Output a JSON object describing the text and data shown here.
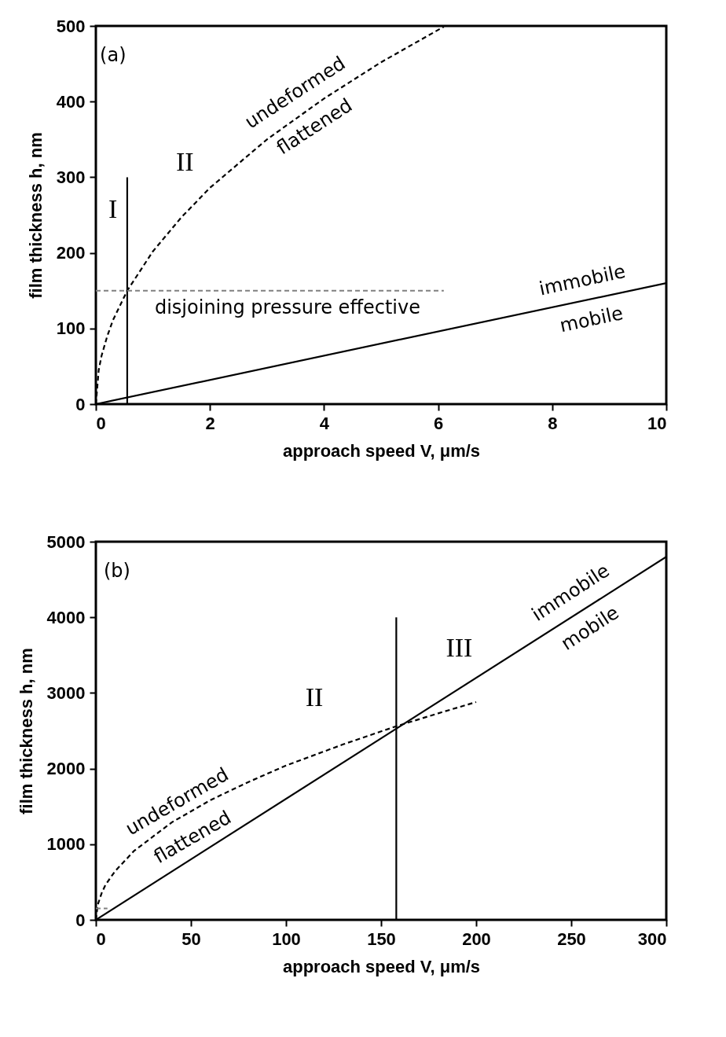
{
  "chart_data": [
    {
      "type": "line",
      "xlabel": "approach speed  V, μm/s",
      "ylabel": "film thickness  h, nm",
      "xlim": [
        0,
        10
      ],
      "ylim": [
        0,
        500
      ],
      "xticks": [
        0,
        2,
        4,
        6,
        8,
        10
      ],
      "yticks": [
        0,
        100,
        200,
        300,
        400,
        500
      ],
      "grid": false,
      "series": [
        {
          "color": "#000000",
          "line_style": "dashed",
          "x": [
            0,
            0.05,
            0.1,
            0.2,
            0.3,
            0.55,
            1,
            1.5,
            2,
            3,
            4,
            5,
            6.1
          ],
          "values": [
            0,
            45,
            64,
            90,
            111,
            150,
            202,
            247,
            286,
            350,
            404,
            452,
            499
          ]
        },
        {
          "color": "#000000",
          "line_style": "solid",
          "x": [
            0,
            10
          ],
          "values": [
            0,
            160
          ]
        },
        {
          "color": "#000000",
          "line_style": "solid",
          "x": [
            0.55,
            0.55
          ],
          "values": [
            0,
            300
          ]
        },
        {
          "color": "#808080",
          "line_style": "dashed",
          "x": [
            0,
            6.1
          ],
          "values": [
            150,
            150
          ]
        }
      ],
      "annotations": [
        "(a)",
        "I",
        "II",
        "undeformed",
        "flattened",
        "disjoining pressure effective",
        "immobile",
        "mobile"
      ]
    },
    {
      "type": "line",
      "xlabel": "approach speed  V, μm/s",
      "ylabel": "film thickness  h, nm",
      "xlim": [
        0,
        300
      ],
      "ylim": [
        0,
        5000
      ],
      "xticks": [
        0,
        50,
        100,
        150,
        200,
        250,
        300
      ],
      "yticks": [
        0,
        1000,
        2000,
        3000,
        4000,
        5000
      ],
      "grid": false,
      "series": [
        {
          "color": "#000000",
          "line_style": "dashed",
          "x": [
            0,
            1,
            3,
            5,
            10,
            20,
            40,
            60,
            80,
            100,
            130,
            158,
            180,
            200
          ],
          "values": [
            0,
            200,
            350,
            460,
            640,
            910,
            1290,
            1580,
            1820,
            2040,
            2320,
            2560,
            2730,
            2880
          ]
        },
        {
          "color": "#000000",
          "line_style": "solid",
          "x": [
            0,
            300
          ],
          "values": [
            0,
            4800
          ]
        },
        {
          "color": "#000000",
          "line_style": "solid",
          "x": [
            158,
            158
          ],
          "values": [
            0,
            4000
          ]
        },
        {
          "color": "#808080",
          "line_style": "dashed",
          "x": [
            0,
            6.1
          ],
          "values": [
            150,
            150
          ]
        }
      ],
      "annotations": [
        "(b)",
        "II",
        "III",
        "undeformed",
        "flattened",
        "immobile",
        "mobile"
      ]
    }
  ]
}
